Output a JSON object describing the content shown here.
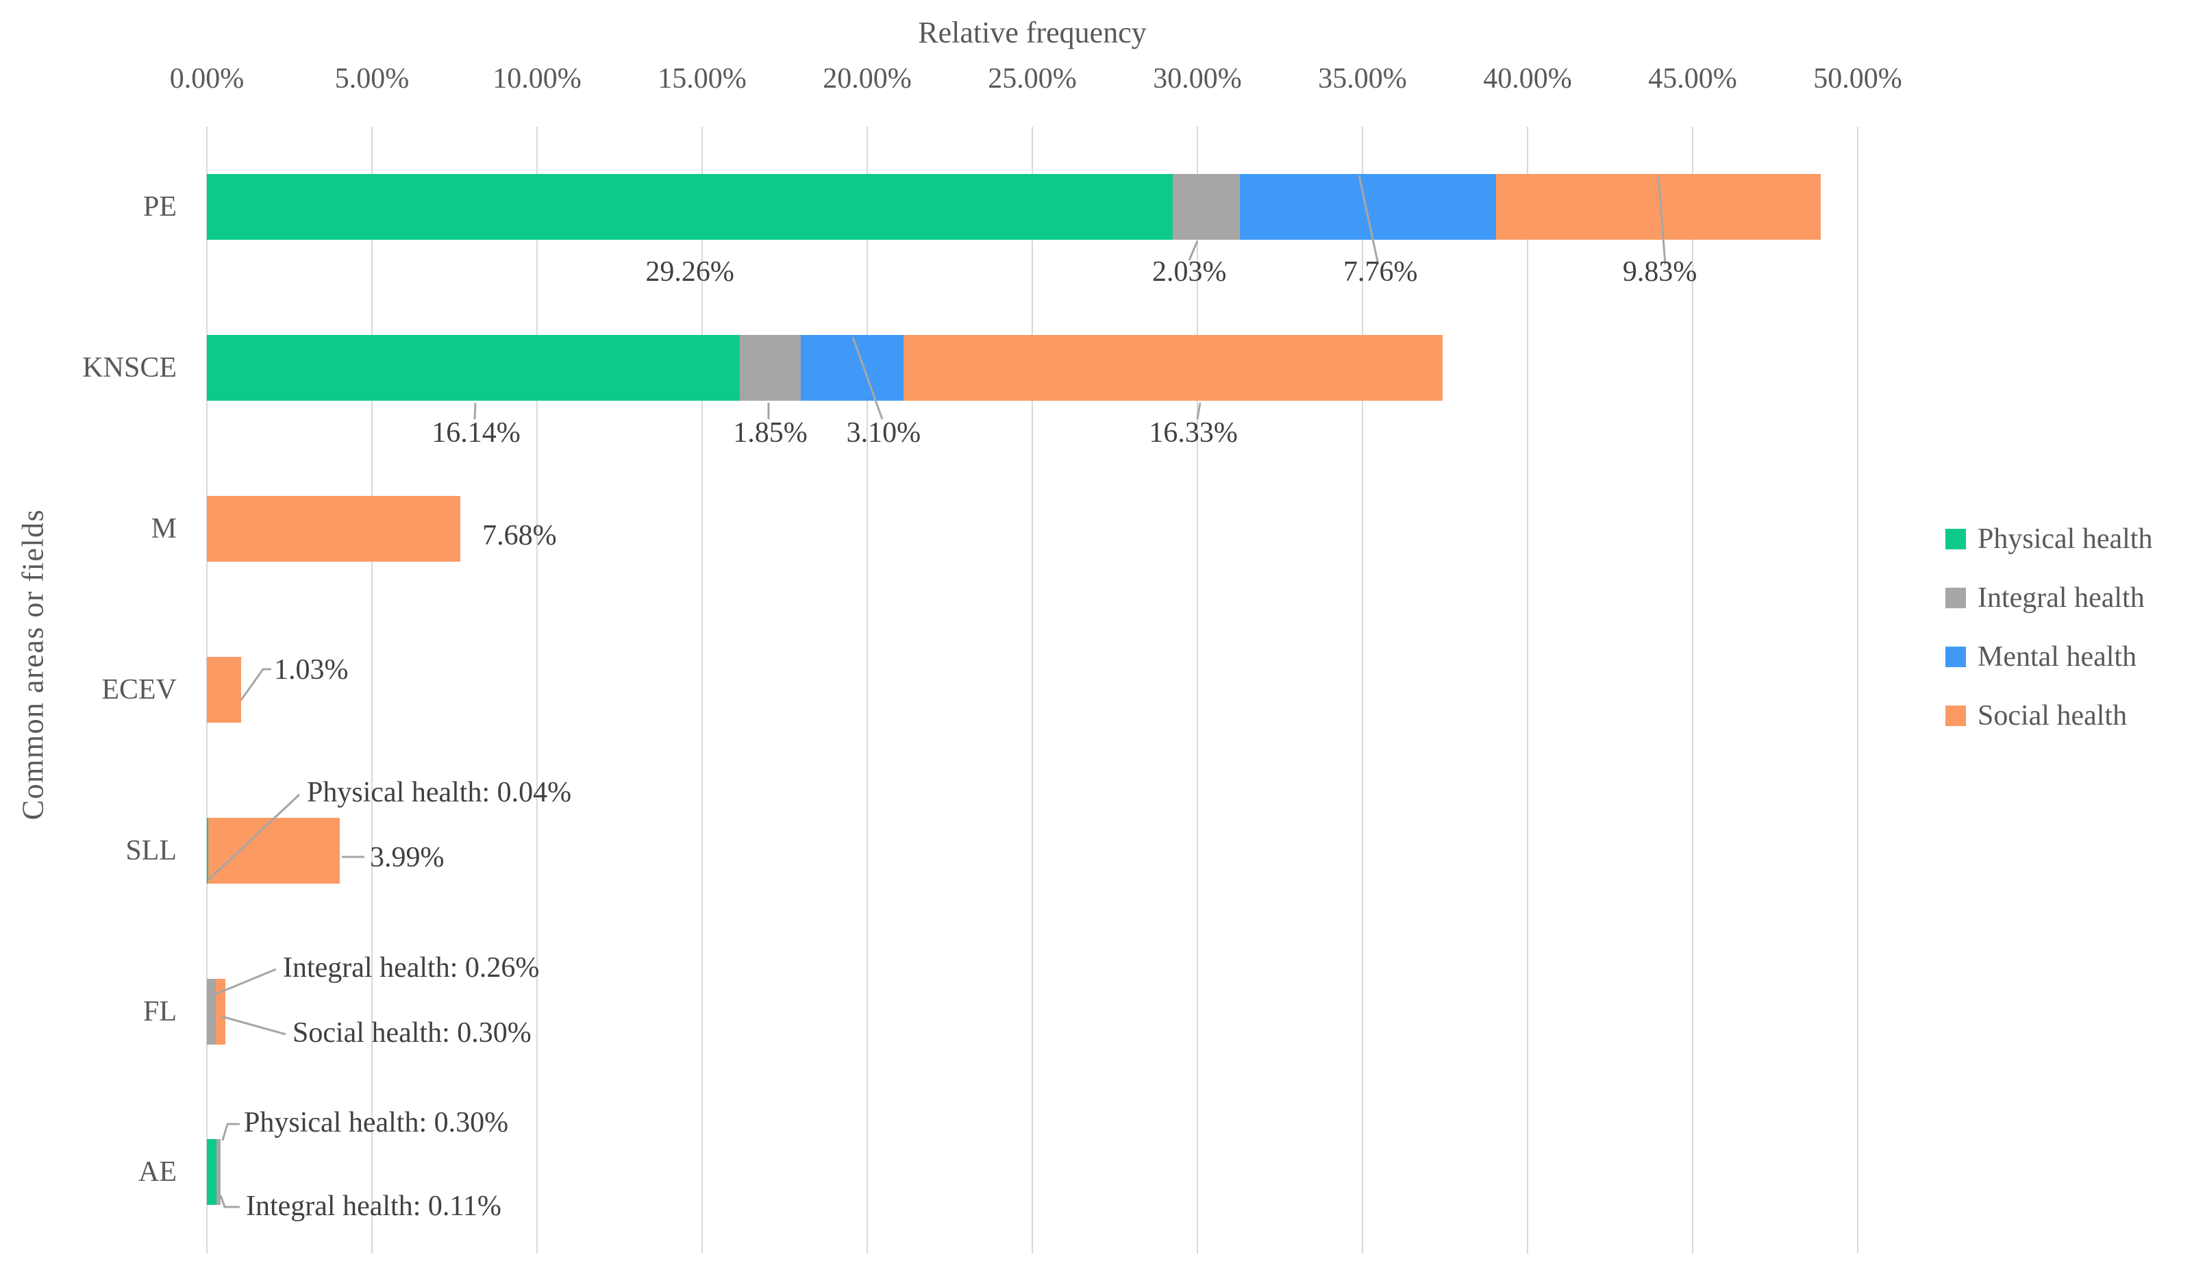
{
  "chart_data": {
    "type": "bar",
    "variant": "horizontal-stacked",
    "title": "Relative frequency",
    "xlabel": "Relative frequency",
    "ylabel": "Common areas or fields",
    "xlim": [
      0,
      50
    ],
    "x_tick_step": 5,
    "x_ticks": [
      "0.00%",
      "5.00%",
      "10.00%",
      "15.00%",
      "20.00%",
      "25.00%",
      "30.00%",
      "35.00%",
      "40.00%",
      "45.00%",
      "50.00%"
    ],
    "grid": "vertical",
    "legend_position": "right",
    "categories": [
      "PE",
      "KNSCE",
      "M",
      "ECEV",
      "SLL",
      "FL",
      "AE"
    ],
    "series": [
      {
        "name": "Physical health",
        "color": "#0DC98C",
        "values": [
          29.26,
          16.14,
          0,
          0,
          0.04,
          0,
          0.3
        ]
      },
      {
        "name": "Integral health",
        "color": "#A6A6A6",
        "values": [
          2.03,
          1.85,
          0,
          0,
          0,
          0.26,
          0.11
        ]
      },
      {
        "name": "Mental health",
        "color": "#4099F7",
        "values": [
          7.76,
          3.1,
          0,
          0,
          0,
          0,
          0
        ]
      },
      {
        "name": "Social health",
        "color": "#FB9A63",
        "values": [
          9.83,
          16.33,
          7.68,
          1.03,
          3.99,
          0.3,
          0
        ]
      }
    ],
    "data_labels": [
      {
        "category": "PE",
        "series": "Physical health",
        "text": "29.26%"
      },
      {
        "category": "PE",
        "series": "Integral health",
        "text": "2.03%"
      },
      {
        "category": "PE",
        "series": "Mental health",
        "text": "7.76%"
      },
      {
        "category": "PE",
        "series": "Social health",
        "text": "9.83%"
      },
      {
        "category": "KNSCE",
        "series": "Physical health",
        "text": "16.14%"
      },
      {
        "category": "KNSCE",
        "series": "Integral health",
        "text": "1.85%"
      },
      {
        "category": "KNSCE",
        "series": "Mental health",
        "text": "3.10%"
      },
      {
        "category": "KNSCE",
        "series": "Social health",
        "text": "16.33%"
      },
      {
        "category": "M",
        "series": "Social health",
        "text": "7.68%"
      },
      {
        "category": "ECEV",
        "series": "Social health",
        "text": "1.03%"
      },
      {
        "category": "SLL",
        "series": "Physical health",
        "text": "Physical health: 0.04%"
      },
      {
        "category": "SLL",
        "series": "Social health",
        "text": "3.99%"
      },
      {
        "category": "FL",
        "series": "Integral health",
        "text": "Integral health: 0.26%"
      },
      {
        "category": "FL",
        "series": "Social health",
        "text": "Social health: 0.30%"
      },
      {
        "category": "AE",
        "series": "Physical health",
        "text": "Physical health: 0.30%"
      },
      {
        "category": "AE",
        "series": "Integral health",
        "text": "Integral health: 0.11%"
      }
    ],
    "legend": [
      "Physical health",
      "Integral health",
      "Mental health",
      "Social health"
    ]
  },
  "styles": {
    "grid_color": "#D9D9D9",
    "leader_color": "#A6A6A6",
    "data_label_color": "#404040",
    "axis_text_color": "#595959",
    "background": "#FFFFFF"
  }
}
